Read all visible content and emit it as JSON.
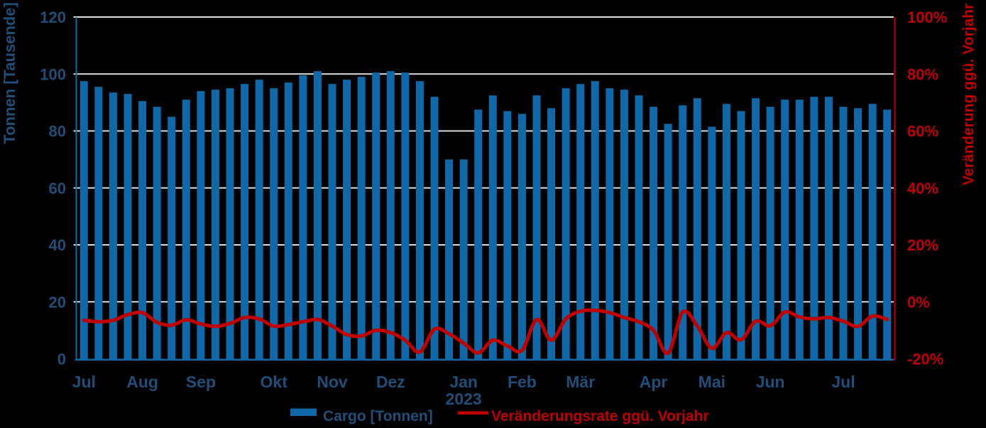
{
  "chart_data": {
    "type": "bar+line combo (weekly)",
    "title": "",
    "bar_series": {
      "name": "Cargo [Tonnen]",
      "values": [
        97.5,
        95.5,
        93.5,
        93,
        90.5,
        88.5,
        85,
        91,
        94,
        94.5,
        95,
        96.5,
        98,
        95,
        97,
        99.5,
        101,
        96.5,
        98,
        99,
        100.5,
        101,
        100.5,
        97.5,
        92,
        70,
        70,
        87.5,
        92.5,
        87,
        86,
        92.5,
        88,
        95,
        96.5,
        97.5,
        95,
        94.5,
        92.5,
        88.5,
        82.5,
        89,
        91.5,
        81.5,
        89.5,
        87,
        91.5,
        88.5,
        91,
        91,
        92,
        92,
        88.5,
        88,
        89.5,
        87.5
      ]
    },
    "line_series": {
      "name": "Veränderungsrate ggü. Vorjahr",
      "values_pct": [
        -6.5,
        -7.0,
        -6.5,
        -4.5,
        -3.8,
        -7.2,
        -8.2,
        -6.3,
        -7.8,
        -8.6,
        -7.6,
        -5.5,
        -6.0,
        -8.5,
        -8.0,
        -7.0,
        -6.2,
        -8.5,
        -11.5,
        -12.0,
        -10.0,
        -10.8,
        -13.5,
        -17.6,
        -9.6,
        -11.2,
        -14.5,
        -17.9,
        -13.5,
        -15.5,
        -17.0,
        -6.2,
        -13.5,
        -6.0,
        -3.3,
        -3.0,
        -3.8,
        -5.5,
        -7.0,
        -10.0,
        -18.0,
        -3.6,
        -8.5,
        -16.3,
        -10.8,
        -13.3,
        -6.8,
        -8.4,
        -3.6,
        -5.3,
        -6.0,
        -5.5,
        -6.8,
        -8.6,
        -5.0,
        -6.2
      ]
    },
    "x_axis": {
      "month_labels": [
        {
          "label": "Jul",
          "index": 0
        },
        {
          "label": "Aug",
          "index": 4
        },
        {
          "label": "Sep",
          "index": 8
        },
        {
          "label": "Okt",
          "index": 13
        },
        {
          "label": "Nov",
          "index": 17
        },
        {
          "label": "Dez",
          "index": 21
        },
        {
          "label": "Jan",
          "index": 26,
          "year": "2023"
        },
        {
          "label": "Feb",
          "index": 30
        },
        {
          "label": "Mär",
          "index": 34
        },
        {
          "label": "Apr",
          "index": 39
        },
        {
          "label": "Mai",
          "index": 43
        },
        {
          "label": "Jun",
          "index": 47
        },
        {
          "label": "Jul",
          "index": 52
        }
      ]
    },
    "left_axis": {
      "title": "Tonnen [Tausende]",
      "min": 0,
      "max": 120,
      "tick_step": 20,
      "tick_labels": [
        "0",
        "20",
        "40",
        "60",
        "80",
        "100",
        "120"
      ]
    },
    "right_axis": {
      "title": "Veränderung ggü. Vorjahr",
      "min": -20,
      "max": 100,
      "tick_step": 20,
      "tick_labels": [
        "-20%",
        "0%",
        "20%",
        "40%",
        "60%",
        "80%",
        "100%"
      ]
    },
    "legend": [
      {
        "label": "Cargo [Tonnen]",
        "swatch": "bar"
      },
      {
        "label": "Veränderungsrate ggü. Vorjahr",
        "swatch": "line"
      }
    ],
    "colors": {
      "background": "#000000",
      "bar": "#0F69A8",
      "line": "#C00000",
      "gridline": "#DCDCDC",
      "axis_blue": "#0F69A8",
      "text_blue": "#1F4E79",
      "text_red": "#C00000"
    },
    "layout_hints": {
      "grid": "horizontal only",
      "legend_position": "bottom center"
    }
  }
}
